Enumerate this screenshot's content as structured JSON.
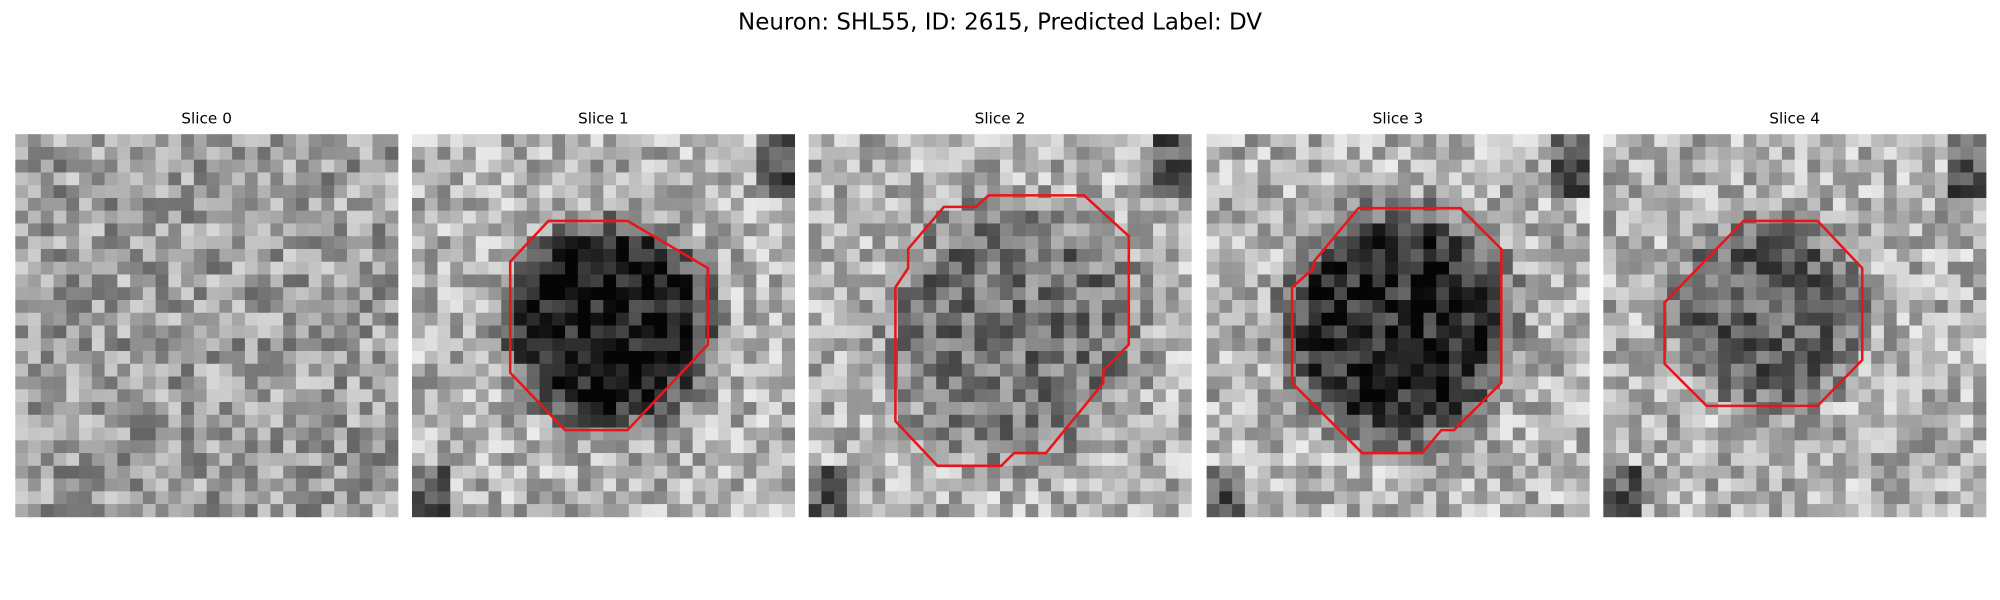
{
  "title": "Neuron: SHL55, ID: 2615, Predicted Label: DV",
  "panels": [
    {
      "title": "Slice 0"
    },
    {
      "title": "Slice 1"
    },
    {
      "title": "Slice 2"
    },
    {
      "title": "Slice 3"
    },
    {
      "title": "Slice 4"
    }
  ]
}
